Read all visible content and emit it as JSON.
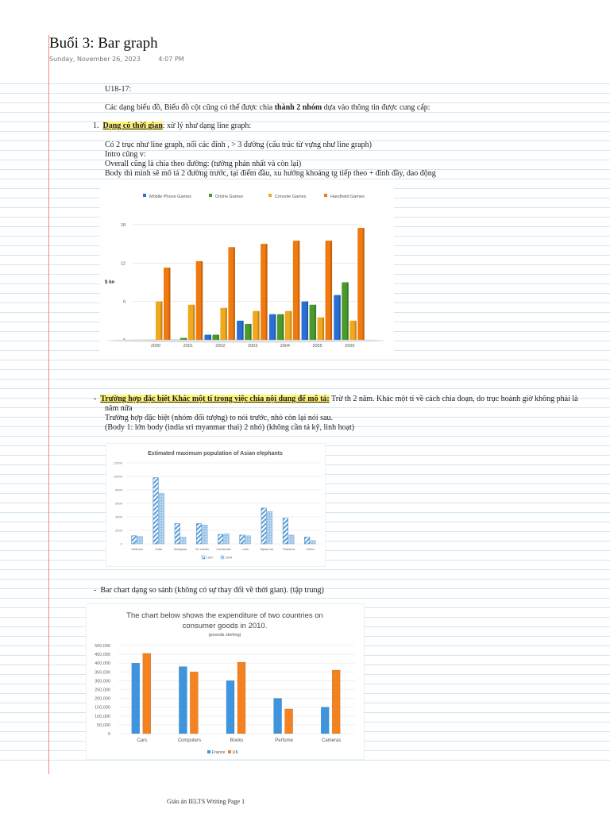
{
  "page": {
    "title": "Buổi 3: Bar graph",
    "date": "Sunday, November 26, 2023",
    "time": "4:07 PM",
    "footer": "Giáo án IELTS Writing Page 1"
  },
  "content": {
    "code": "U18-17:",
    "intro_pre": "Các dạng biểu đồ, Biểu đồ cột cũng có thể được chia ",
    "intro_bold": "thành 2 nhóm",
    "intro_post": " dựa vào thông tin được cung cấp:",
    "section1_num": "1.",
    "section1_highlight": "Dạng có thời gian",
    "section1_rest": ": xử lý như dạng line graph:",
    "section1_lines": [
      "Có 2 trục như line graph, nối các đỉnh , > 3 đường (cấu trúc từ vựng như line graph)",
      "Intro cũng v:",
      "Overall cũng là chia theo đường: (tưởng phản nhất và còn lại)",
      "Body thì mình sẽ mô tả 2 đường trước, tại điểm đầu, xu hướng khoảng tg tiếp theo + đỉnh đầy, dao động"
    ],
    "section2_bullet": "-",
    "section2_highlight": "Trường hợp đặc biệt Khác một tí trong việc chia nội dung để mô tả:",
    "section2_rest": "  Trừ th 2 năm. Khác một tí về cách chia đoạn, do trục hoành giờ không phải là",
    "section2_lines": [
      "năm nữa",
      "Trường hợp đặc biệt (nhóm đối tượng) to nói trước, nhỏ còn lại nói sau.",
      "(Body 1: lớn body (india sri myanmar thai) 2 nhỏ) (không cần tả kỹ, linh hoạt)"
    ],
    "section3_bullet": "-",
    "section3_text": "Bar chart dạng so sánh (không có sự thay đổi về thời gian). (tập trung)"
  },
  "chart_data": [
    {
      "type": "bar",
      "title": "",
      "xlabel": "",
      "ylabel": "$ bn",
      "ylim": [
        0,
        18
      ],
      "yticks": [
        0,
        6,
        12,
        18
      ],
      "legend_position": "top",
      "grid": true,
      "categories": [
        "2000",
        "2001",
        "2002",
        "2003",
        "2004",
        "2005",
        "2006"
      ],
      "series": [
        {
          "name": "Mobile Phone Games",
          "color": "#2a6fd6",
          "values": [
            0,
            0,
            0.8,
            3,
            4,
            6,
            7
          ]
        },
        {
          "name": "Online Games",
          "color": "#4a9a2e",
          "values": [
            0,
            0.3,
            0.8,
            2.5,
            4,
            5.5,
            9
          ]
        },
        {
          "name": "Console Games",
          "color": "#f0a81c",
          "values": [
            6,
            5.5,
            5,
            4.5,
            4.5,
            3.5,
            3
          ]
        },
        {
          "name": "Handheld Games",
          "color": "#f07a10",
          "values": [
            11.3,
            12.3,
            14.5,
            15,
            15.5,
            15.5,
            17.5
          ]
        }
      ]
    },
    {
      "type": "bar",
      "title": "Estimated maximum population of Asian elephants",
      "xlabel": "",
      "ylabel": "",
      "ylim": [
        0,
        12000
      ],
      "yticks": [
        0,
        2000,
        4000,
        6000,
        8000,
        10000,
        12000
      ],
      "legend_position": "bottom",
      "grid": true,
      "categories": [
        "Vietnam",
        "India",
        "Malaysia",
        "Sri Lanka",
        "Cambodia",
        "Laos",
        "Myanmar",
        "Thailand",
        "China"
      ],
      "series": [
        {
          "name": "1997",
          "color": "#5b9bd5",
          "pattern": "hatched",
          "values": [
            1200,
            9800,
            3000,
            3000,
            1400,
            1300,
            5300,
            3800,
            1000
          ]
        },
        {
          "name": "2004",
          "color": "#9cc3e6",
          "pattern": "dotted",
          "values": [
            1100,
            7500,
            1000,
            2800,
            1500,
            1200,
            4800,
            1300,
            500
          ]
        }
      ]
    },
    {
      "type": "bar",
      "title": "The chart below shows the expenditure of two countries on consumer goods in 2010.",
      "subtitle": "(pounds sterling)",
      "xlabel": "",
      "ylabel": "",
      "ylim": [
        0,
        500000
      ],
      "yticks": [
        "0",
        "50,000",
        "100,000",
        "150,000",
        "200,000",
        "250,000",
        "300,000",
        "350,000",
        "400,000",
        "450,000",
        "500,000"
      ],
      "legend_position": "bottom",
      "grid": true,
      "categories": [
        "Cars",
        "Computers",
        "Books",
        "Perfume",
        "Cameras"
      ],
      "series": [
        {
          "name": "France",
          "color": "#3d95e0",
          "values": [
            400000,
            380000,
            300000,
            200000,
            150000
          ]
        },
        {
          "name": "UK",
          "color": "#f5821f",
          "values": [
            455000,
            350000,
            405000,
            140000,
            360000
          ]
        }
      ]
    }
  ]
}
